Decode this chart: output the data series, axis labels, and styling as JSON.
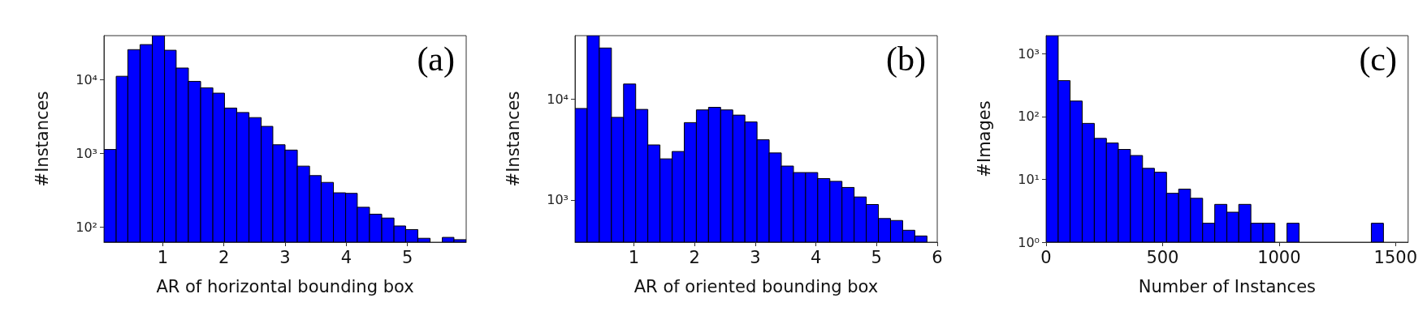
{
  "chart_data": [
    {
      "type": "histogram",
      "xlabel": "AR of horizontal bounding box",
      "ylabel": "#Instances",
      "annotations": [
        "(a)"
      ],
      "color": "#0000ff",
      "log": "y",
      "grid": false,
      "bins": [
        0.04,
        0.24,
        0.43,
        0.63,
        0.83,
        1.03,
        1.22,
        1.42,
        1.62,
        1.82,
        2.01,
        2.21,
        2.41,
        2.61,
        2.8,
        3.0,
        3.2,
        3.4,
        3.59,
        3.79,
        3.99,
        4.18,
        4.38,
        4.58,
        4.78,
        4.97,
        5.17,
        5.37,
        5.57,
        5.76,
        5.96
      ],
      "values": [
        1130,
        11200,
        25800,
        30200,
        40000,
        25300,
        14500,
        9550,
        7800,
        6600,
        4140,
        3600,
        3070,
        2330,
        1310,
        1110,
        671,
        499,
        403,
        291,
        286,
        185,
        149,
        132,
        103,
        92,
        70,
        null,
        72,
        67
      ],
      "xlim": [
        0.04,
        5.96
      ],
      "xticks": [
        1,
        2,
        3,
        4,
        5
      ],
      "ylim": [
        62,
        40000
      ],
      "yticks": [
        {
          "value": 100,
          "label": "10²"
        },
        {
          "value": 1000,
          "label": "10³"
        },
        {
          "value": 10000,
          "label": "10⁴"
        }
      ]
    },
    {
      "type": "histogram",
      "xlabel": "AR of oriented bounding box",
      "ylabel": "#Instances",
      "annotations": [
        "(b)"
      ],
      "color": "#0000ff",
      "log": "y",
      "grid": false,
      "bins": [
        0.03,
        0.23,
        0.43,
        0.63,
        0.83,
        1.03,
        1.23,
        1.43,
        1.63,
        1.83,
        2.03,
        2.23,
        2.43,
        2.63,
        2.83,
        3.03,
        3.23,
        3.43,
        3.63,
        3.83,
        4.03,
        4.23,
        4.43,
        4.63,
        4.83,
        5.03,
        5.23,
        5.43,
        5.63,
        5.83
      ],
      "values": [
        8110,
        43000,
        32400,
        6620,
        14200,
        7940,
        3520,
        2560,
        3030,
        5870,
        7850,
        8330,
        7850,
        6970,
        5960,
        3960,
        2930,
        2170,
        1870,
        1870,
        1630,
        1530,
        1330,
        1070,
        900,
        653,
        624,
        499,
        438
      ],
      "xlim": [
        0.03,
        6
      ],
      "xticks": [
        1,
        2,
        3,
        4,
        5,
        6
      ],
      "ylim": [
        380,
        43000
      ],
      "yticks": [
        {
          "value": 1000,
          "label": "10³"
        },
        {
          "value": 10000,
          "label": "10⁴"
        }
      ]
    },
    {
      "type": "histogram",
      "xlabel": "Number of Instances",
      "ylabel": "#Images",
      "annotations": [
        "(c)"
      ],
      "color": "#0000ff",
      "log": "y",
      "grid": false,
      "bins": [
        0,
        52,
        103,
        155,
        207,
        259,
        310,
        362,
        414,
        465,
        517,
        569,
        620,
        672,
        724,
        776,
        827,
        879,
        931,
        982,
        1034,
        1086,
        1137,
        1189,
        1241,
        1293,
        1344,
        1396,
        1448
      ],
      "values": [
        1950,
        374,
        177,
        78,
        45,
        38,
        30,
        24,
        15,
        13,
        6,
        7,
        5,
        2,
        4,
        3,
        4,
        2,
        2,
        null,
        2,
        null,
        null,
        null,
        null,
        null,
        null,
        2
      ],
      "xlim": [
        0,
        1554
      ],
      "xticks": [
        0,
        500,
        1000,
        1500
      ],
      "ylim": [
        1,
        1950
      ],
      "yticks": [
        {
          "value": 1,
          "label": "10⁰"
        },
        {
          "value": 10,
          "label": "10¹"
        },
        {
          "value": 100,
          "label": "10²"
        },
        {
          "value": 1000,
          "label": "10³"
        }
      ]
    }
  ]
}
